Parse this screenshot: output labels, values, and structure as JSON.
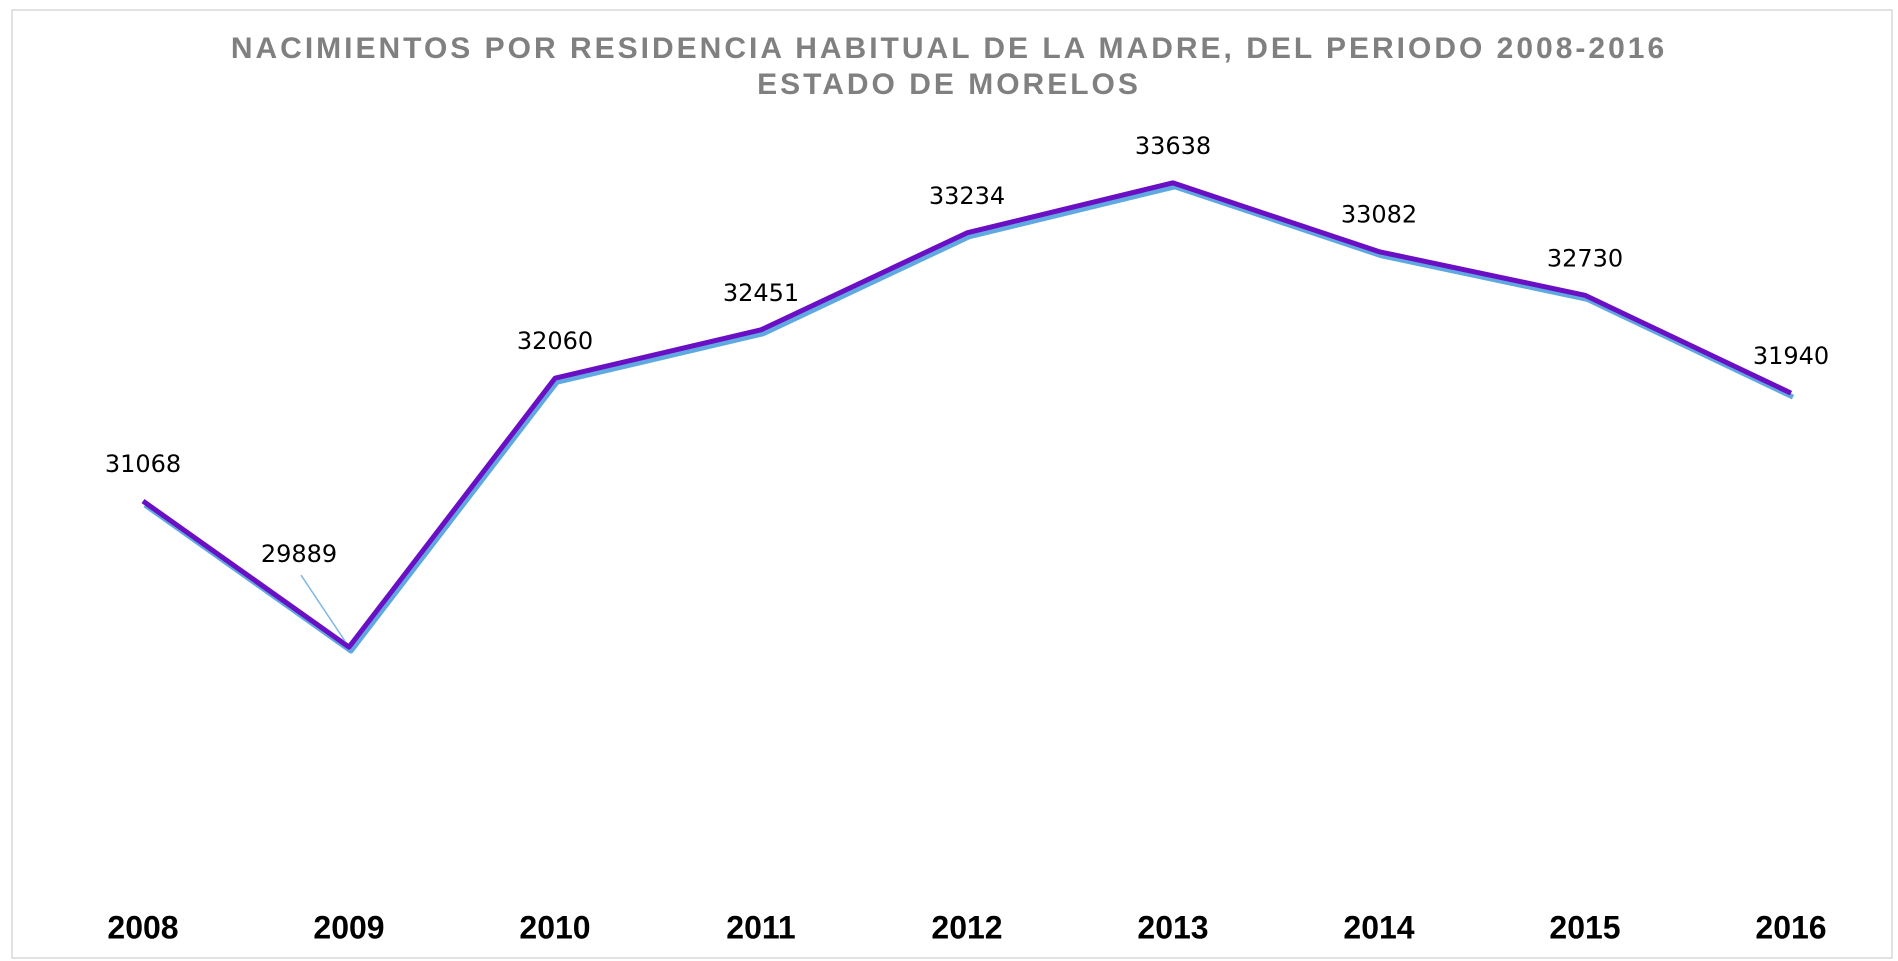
{
  "chart_data": {
    "type": "line",
    "title": "NACIMIENTOS POR RESIDENCIA HABITUAL DE LA MADRE, DEL PERIODO 2008-2016",
    "subtitle": "ESTADO DE MORELOS",
    "categories": [
      "2008",
      "2009",
      "2010",
      "2011",
      "2012",
      "2013",
      "2014",
      "2015",
      "2016"
    ],
    "series": [
      {
        "name": "Nacimientos",
        "color": "#6a0fc4",
        "values": [
          31068,
          29889,
          32060,
          32451,
          33234,
          33638,
          33082,
          32730,
          31940
        ]
      }
    ],
    "ylim": [
      28000,
      34000
    ]
  }
}
